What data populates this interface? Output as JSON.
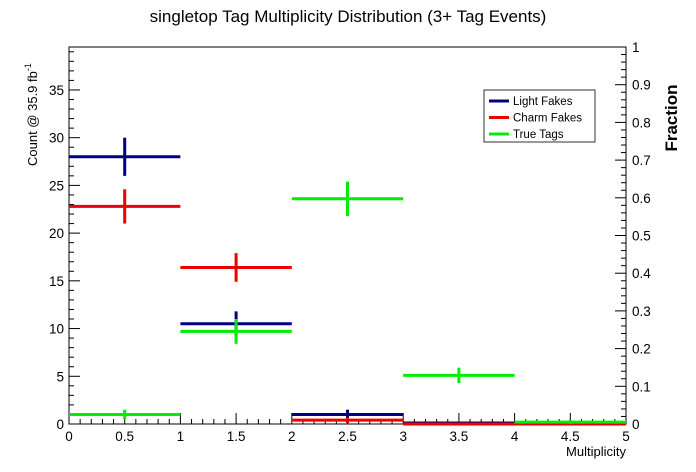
{
  "chart_data": {
    "type": "step-errorbar",
    "title": "singletop Tag Multiplicity Distribution (3+ Tag Events)",
    "xlabel": "Multiplicity",
    "ylabel_left": "Count @ 35.9 fb",
    "ylabel_left_sup": "-1",
    "ylabel_right": "Fraction",
    "xlim": [
      0,
      5
    ],
    "ylim_left": [
      0,
      39.5
    ],
    "ylim_right": [
      0,
      1
    ],
    "x_ticks": [
      "0",
      "0.5",
      "1",
      "1.5",
      "2",
      "2.5",
      "3",
      "3.5",
      "4",
      "4.5",
      "5"
    ],
    "y_left_ticks": [
      "0",
      "5",
      "10",
      "15",
      "20",
      "25",
      "30",
      "35"
    ],
    "y_right_ticks": [
      "0",
      "0.1",
      "0.2",
      "0.3",
      "0.4",
      "0.5",
      "0.6",
      "0.7",
      "0.8",
      "0.9",
      "1"
    ],
    "bins": [
      {
        "low": 0,
        "high": 1,
        "center": 0.5
      },
      {
        "low": 1,
        "high": 2,
        "center": 1.5
      },
      {
        "low": 2,
        "high": 3,
        "center": 2.5
      },
      {
        "low": 3,
        "high": 4,
        "center": 3.5
      },
      {
        "low": 4,
        "high": 5,
        "center": 4.5
      }
    ],
    "series": [
      {
        "name": "Light Fakes",
        "color": "#00007f",
        "values": [
          28.0,
          10.5,
          1.0,
          0.1,
          0.0
        ],
        "errors": [
          2.0,
          1.3,
          0.5,
          0.1,
          0.0
        ]
      },
      {
        "name": "Charm Fakes",
        "color": "#ee0000",
        "values": [
          22.8,
          16.4,
          0.4,
          0.0,
          0.0
        ],
        "errors": [
          1.8,
          1.5,
          0.3,
          0.0,
          0.0
        ]
      },
      {
        "name": "True Tags",
        "color": "#00ee00",
        "values": [
          1.0,
          9.7,
          23.6,
          5.1,
          0.2
        ],
        "errors": [
          0.5,
          1.3,
          1.8,
          0.8,
          0.2
        ]
      }
    ],
    "legend_position": "top-right",
    "grid": false
  }
}
